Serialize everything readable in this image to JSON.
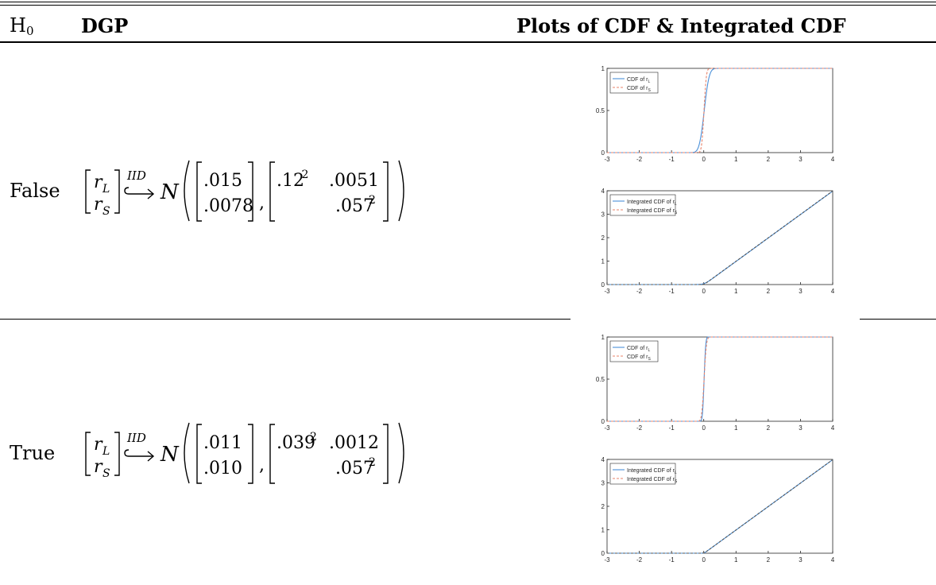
{
  "header": {
    "h0": "H",
    "h0_sub": "0",
    "dgp": "DGP",
    "plots": "Plots of CDF & Integrated CDF"
  },
  "rows": [
    {
      "label": "False",
      "mean": [
        ".015",
        ".0078"
      ],
      "cov": {
        "a": ".12",
        "b": ".0051",
        "d": ".057"
      }
    },
    {
      "label": "True",
      "mean": [
        ".011",
        ".010"
      ],
      "cov": {
        "a": ".039",
        "b": ".0012",
        "d": ".057"
      }
    }
  ],
  "formula_common": {
    "vec_top": "r",
    "vec_top_sub": "L",
    "vec_bot": "r",
    "vec_bot_sub": "S",
    "iid": "IID",
    "normal": "N",
    "sq": "2"
  },
  "chart_data": [
    {
      "type": "line",
      "row": "False",
      "panel": "CDF",
      "xlim": [
        -3,
        4
      ],
      "ylim": [
        0,
        1
      ],
      "xticks": [
        "-3",
        "-2",
        "-1",
        "0",
        "1",
        "2",
        "3",
        "4"
      ],
      "yticks": [
        "0",
        "0.5",
        "1"
      ],
      "legend_placement": "top-left",
      "series": [
        {
          "name": "CDF of r",
          "name_sub": "L",
          "color": "#4a90d9",
          "dash": "solid",
          "mean": 0.015,
          "sd": 0.12
        },
        {
          "name": "CDF of r",
          "name_sub": "S",
          "color": "#e8836a",
          "dash": "dashed",
          "mean": 0.0078,
          "sd": 0.057
        }
      ]
    },
    {
      "type": "line",
      "row": "False",
      "panel": "Integrated CDF",
      "xlim": [
        -3,
        4
      ],
      "ylim": [
        0,
        4
      ],
      "xticks": [
        "-3",
        "-2",
        "-1",
        "0",
        "1",
        "2",
        "3",
        "4"
      ],
      "yticks": [
        "0",
        "1",
        "2",
        "3",
        "4"
      ],
      "legend_placement": "top-left",
      "series": [
        {
          "name": "Integrated CDF of r",
          "name_sub": "L",
          "color": "#4a90d9",
          "dash": "solid",
          "mean": 0.015,
          "sd": 0.12
        },
        {
          "name": "Integrated CDF of r",
          "name_sub": "S",
          "color": "#e8836a",
          "dash": "dashed",
          "mean": 0.0078,
          "sd": 0.057
        }
      ]
    },
    {
      "type": "line",
      "row": "True",
      "panel": "CDF",
      "xlim": [
        -3,
        4
      ],
      "ylim": [
        0,
        1
      ],
      "xticks": [
        "-3",
        "-2",
        "-1",
        "0",
        "1",
        "2",
        "3",
        "4"
      ],
      "yticks": [
        "0",
        "0.5",
        "1"
      ],
      "legend_placement": "top-left",
      "series": [
        {
          "name": "CDF of r",
          "name_sub": "L",
          "color": "#4a90d9",
          "dash": "solid",
          "mean": 0.011,
          "sd": 0.039
        },
        {
          "name": "CDF of r",
          "name_sub": "S",
          "color": "#e8836a",
          "dash": "dashed",
          "mean": 0.01,
          "sd": 0.057
        }
      ]
    },
    {
      "type": "line",
      "row": "True",
      "panel": "Integrated CDF",
      "xlim": [
        -3,
        4
      ],
      "ylim": [
        0,
        4
      ],
      "xticks": [
        "-3",
        "-2",
        "-1",
        "0",
        "1",
        "2",
        "3",
        "4"
      ],
      "yticks": [
        "0",
        "1",
        "2",
        "3",
        "4"
      ],
      "legend_placement": "top-left",
      "series": [
        {
          "name": "Integrated CDF of r",
          "name_sub": "L",
          "color": "#4a90d9",
          "dash": "solid",
          "mean": 0.011,
          "sd": 0.039
        },
        {
          "name": "Integrated CDF of r",
          "name_sub": "S",
          "color": "#e8836a",
          "dash": "dashed",
          "mean": 0.01,
          "sd": 0.057
        }
      ]
    }
  ]
}
